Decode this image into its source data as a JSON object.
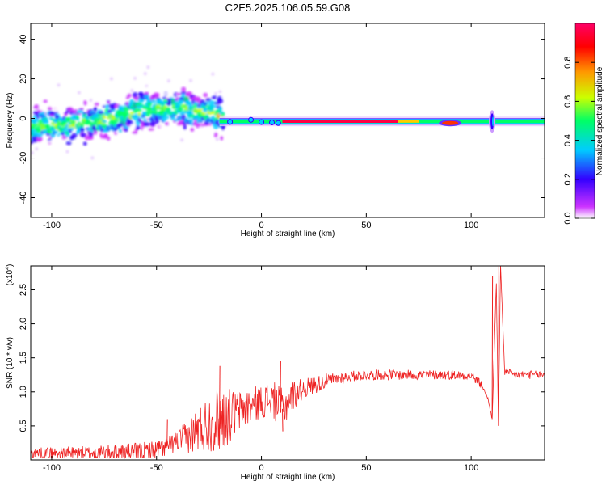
{
  "figure_title": "C2E5.2025.106.05.59.G08",
  "chart_data": [
    {
      "type": "heatmap",
      "title": "C2E5.2025.106.05.59.G08",
      "xlabel": "Height of straight line (km)",
      "ylabel": "Frequency (Hz)",
      "xlim": [
        -110,
        135
      ],
      "ylim": [
        -50,
        48
      ],
      "xticks": [
        -100,
        -50,
        0,
        50,
        100
      ],
      "yticks": [
        -40,
        -20,
        0,
        20,
        40
      ],
      "xtick_labels": [
        "-100",
        "-50",
        "0",
        "50",
        "100"
      ],
      "ytick_labels": [
        "-40",
        "-20",
        "0",
        "20",
        "40"
      ],
      "colorbar": {
        "label": "Normalized spectral amplitude",
        "range": [
          0,
          1
        ],
        "ticks": [
          0.0,
          0.2,
          0.4,
          0.6,
          0.8
        ],
        "tick_labels": [
          "0.0",
          "0.2",
          "0.4",
          "0.6",
          "0.8"
        ],
        "colormap": [
          "#ffffff",
          "#cc33ff",
          "#3300ff",
          "#00ccff",
          "#00ff66",
          "#ccff00",
          "#ff9900",
          "#ff0000",
          "#ff0066"
        ]
      },
      "features": {
        "noisy_band_center": [
          [
            -110,
            -4
          ],
          [
            -90,
            -3
          ],
          [
            -70,
            0
          ],
          [
            -55,
            5
          ],
          [
            -40,
            5
          ],
          [
            -25,
            3
          ],
          [
            -15,
            0
          ]
        ],
        "carrier_line_freq": -1.5,
        "carrier_line_start": -20,
        "carrier_line_end": 135,
        "strong_segment": [
          10,
          65
        ],
        "dip_near": 90,
        "spike_near": 110
      }
    },
    {
      "type": "line",
      "xlabel": "Height of straight line (km)",
      "ylabel": "SNR (10 * v/v)",
      "y_multiplier_label": "(x10",
      "y_multiplier_exp": "4",
      "xlim": [
        -110,
        135
      ],
      "ylim": [
        0,
        2.85
      ],
      "xticks": [
        -100,
        -50,
        0,
        50,
        100
      ],
      "yticks": [
        0.5,
        1.0,
        1.5,
        2.0,
        2.5
      ],
      "xtick_labels": [
        "-100",
        "-50",
        "0",
        "50",
        "100"
      ],
      "ytick_labels": [
        "0.5",
        "1.0",
        "1.5",
        "2.0",
        "2.5"
      ],
      "series": [
        {
          "color": "#ee2222",
          "envelope_x": [
            -110,
            -80,
            -60,
            -50,
            -45,
            -40,
            -35,
            -30,
            -25,
            -20,
            -15,
            -10,
            -5,
            0,
            5,
            10,
            15,
            20,
            25,
            30,
            40,
            50,
            60,
            70,
            80,
            90,
            100,
            105,
            108,
            110,
            111,
            112,
            113,
            114,
            116,
            120,
            130,
            135
          ],
          "envelope_y": [
            0.1,
            0.1,
            0.12,
            0.15,
            0.2,
            0.28,
            0.35,
            0.45,
            0.55,
            0.6,
            0.65,
            0.72,
            0.8,
            0.85,
            0.9,
            0.75,
            0.95,
            1.05,
            1.1,
            1.15,
            1.22,
            1.25,
            1.25,
            1.25,
            1.25,
            1.25,
            1.24,
            1.1,
            0.9,
            0.6,
            1.6,
            2.6,
            0.5,
            2.85,
            1.3,
            1.25,
            1.25,
            1.25
          ],
          "noise_amplitude_x": [
            -110,
            -40,
            -30,
            -20,
            -10,
            0,
            10,
            20,
            40,
            135
          ],
          "noise_amplitude_y": [
            0.08,
            0.15,
            0.35,
            0.5,
            0.3,
            0.25,
            0.3,
            0.15,
            0.08,
            0.06
          ],
          "spikes": [
            [
              -20,
              1.38
            ],
            [
              9,
              1.45
            ],
            [
              -45,
              0.6
            ],
            [
              10,
              0.42
            ],
            [
              110,
              2.7
            ],
            [
              113,
              2.85
            ]
          ]
        }
      ]
    }
  ]
}
